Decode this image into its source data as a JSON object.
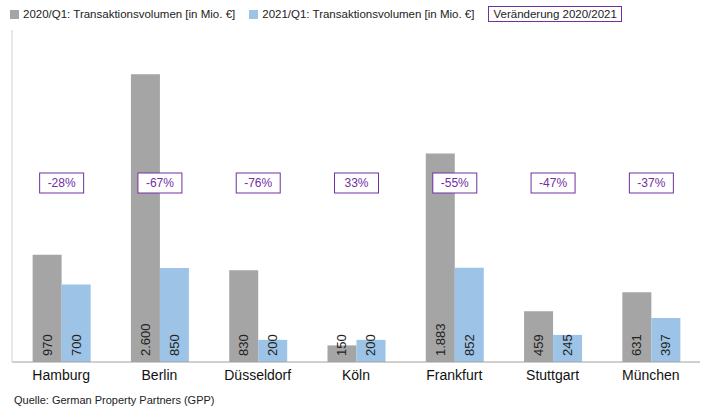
{
  "chart_data": {
    "type": "bar",
    "categories": [
      "Hamburg",
      "Berlin",
      "Düsseldorf",
      "Köln",
      "Frankfurt",
      "Stuttgart",
      "München"
    ],
    "series": [
      {
        "name": "2020/Q1: Transaktionsvolumen [in Mio. €]",
        "color": "#a5a5a5",
        "values": [
          970,
          2600,
          830,
          150,
          1883,
          459,
          631
        ],
        "value_labels": [
          "970",
          "2.600",
          "830",
          "150",
          "1.883",
          "459",
          "631"
        ]
      },
      {
        "name": "2021/Q1: Transaktionsvolumen [in Mio. €]",
        "color": "#9dc3e6",
        "values": [
          700,
          850,
          200,
          200,
          852,
          245,
          397
        ],
        "value_labels": [
          "700",
          "850",
          "200",
          "200",
          "852",
          "245",
          "397"
        ]
      }
    ],
    "ylim": [
      0,
      3000
    ],
    "grid": false,
    "data_labels": true,
    "tick_labels": "x",
    "legend": "top",
    "annotations": {
      "label": "Veränderung 2020/2021",
      "values": [
        -28,
        -67,
        -76,
        33,
        -55,
        -47,
        -37
      ],
      "value_labels": [
        "-28%",
        "-67%",
        "-76%",
        "33%",
        "-55%",
        "-47%",
        "-37%"
      ]
    },
    "source": "Quelle: German Property Partners (GPP)"
  }
}
